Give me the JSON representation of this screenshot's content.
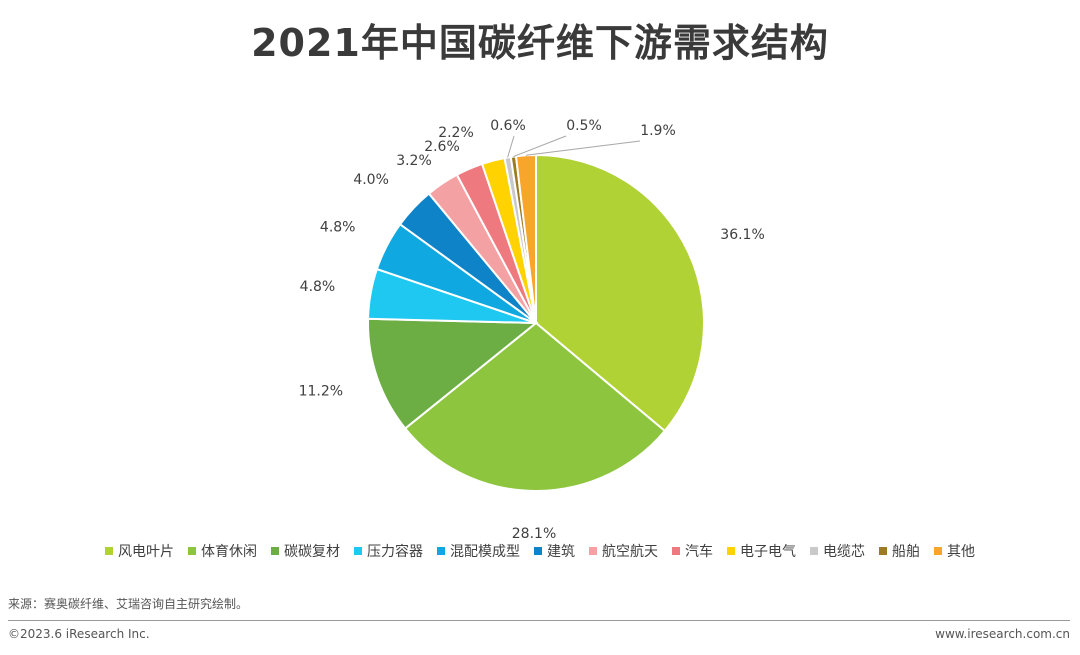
{
  "title": "2021年中国碳纤维下游需求结构",
  "chart_data": {
    "type": "pie",
    "start_angle": "12 o'clock, clockwise",
    "categories": [
      "风电叶片",
      "体育休闲",
      "碳碳复材",
      "压力容器",
      "混配模成型",
      "建筑",
      "航空航天",
      "汽车",
      "电子电气",
      "电缆芯",
      "船舶",
      "其他"
    ],
    "values": [
      36.1,
      28.1,
      11.2,
      4.8,
      4.8,
      4.0,
      3.2,
      2.6,
      2.2,
      0.6,
      0.5,
      1.9
    ],
    "labels": [
      "36.1%",
      "28.1%",
      "11.2%",
      "4.8%",
      "4.8%",
      "4.0%",
      "3.2%",
      "2.6%",
      "2.2%",
      "0.6%",
      "0.5%",
      "1.9%"
    ],
    "colors": [
      "#b1d234",
      "#8dc53e",
      "#6cae44",
      "#1ec8f0",
      "#0fa8e0",
      "#0f83c8",
      "#f4a1a4",
      "#ee7a80",
      "#ffd200",
      "#c9c9c9",
      "#9c7b22",
      "#f8a52c"
    ],
    "legend_position": "bottom",
    "unit": "%"
  },
  "source": "来源：赛奥碳纤维、艾瑞咨询自主研究绘制。",
  "footer": {
    "copyright": "©2023.6 iResearch Inc.",
    "website": "www.iresearch.com.cn"
  }
}
